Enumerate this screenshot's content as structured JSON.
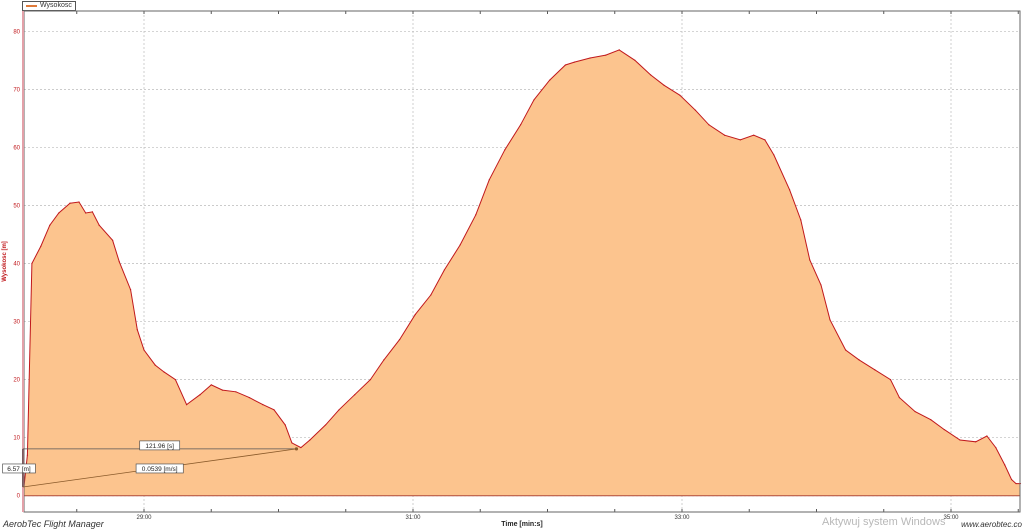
{
  "app": {
    "name": "AerobTec Flight Manager",
    "website": "www.aerobtec.co",
    "watermark": "Aktywuj system Windows"
  },
  "colors": {
    "line": "#c0181c",
    "fill": "#fcc48e",
    "axis_label": "#c0181c",
    "grid": "#bbbbbb"
  },
  "chart_data": {
    "type": "area",
    "title": "",
    "xlabel": "Time [min:s]",
    "ylabel": "Wysokosc [m]",
    "legend": {
      "entries": [
        "Wysokosc"
      ],
      "placement": "top-left"
    },
    "grid": true,
    "xlim": [
      "28:06",
      "35:31"
    ],
    "ylim": [
      -2.8,
      83.5
    ],
    "x_ticks": [
      "29:00",
      "31:00",
      "33:00",
      "35:00"
    ],
    "y_ticks": [
      0,
      10,
      20,
      30,
      40,
      50,
      60,
      70,
      80
    ],
    "series": [
      {
        "name": "Wysokosc",
        "x": [
          "28:06",
          "28:08",
          "28:10",
          "28:14",
          "28:18",
          "28:22",
          "28:27",
          "28:31",
          "28:34",
          "28:37",
          "28:40",
          "28:46",
          "28:49",
          "28:54",
          "28:57",
          "29:00",
          "29:05",
          "29:09",
          "29:14",
          "29:19",
          "29:25",
          "29:30",
          "29:35",
          "29:41",
          "29:47",
          "29:53",
          "29:58",
          "30:03",
          "30:06",
          "30:10",
          "30:14",
          "30:21",
          "30:27",
          "30:34",
          "30:41",
          "30:47",
          "30:54",
          "31:01",
          "31:08",
          "31:14",
          "31:21",
          "31:28",
          "31:34",
          "31:41",
          "31:48",
          "31:54",
          "32:01",
          "32:08",
          "32:12",
          "32:19",
          "32:26",
          "32:32",
          "32:39",
          "32:46",
          "32:52",
          "32:59",
          "33:06",
          "33:12",
          "33:19",
          "33:26",
          "33:32",
          "33:37",
          "33:41",
          "33:48",
          "33:53",
          "33:57",
          "34:02",
          "34:06",
          "34:13",
          "34:19",
          "34:26",
          "34:33",
          "34:37",
          "34:44",
          "34:51",
          "34:57",
          "35:04",
          "35:11",
          "35:16",
          "35:20",
          "35:24",
          "35:27",
          "35:29",
          "35:31"
        ],
        "y": [
          0,
          7,
          40,
          43,
          46.6,
          48.7,
          50.4,
          50.6,
          48.7,
          48.9,
          46.6,
          44,
          40.3,
          35.5,
          28.6,
          25.1,
          22.5,
          21.3,
          20,
          15.7,
          17.4,
          19.1,
          18.2,
          17.9,
          16.9,
          15.7,
          14.8,
          12.2,
          9.1,
          8.3,
          9.6,
          12.2,
          14.8,
          17.4,
          20,
          23.4,
          26.9,
          31.2,
          34.6,
          38.9,
          43.2,
          48.4,
          54.4,
          59.6,
          63.9,
          68.2,
          71.6,
          74.2,
          74.7,
          75.4,
          75.9,
          76.8,
          75,
          72.5,
          70.7,
          69,
          66.4,
          63.9,
          62.1,
          61.3,
          62.1,
          61.3,
          58.7,
          52.7,
          47.5,
          40.6,
          36.3,
          30.3,
          25.1,
          23.4,
          21.7,
          20,
          16.9,
          14.5,
          13.1,
          11.4,
          9.6,
          9.3,
          10.3,
          8.3,
          5.3,
          2.8,
          2.1,
          2.1
        ]
      }
    ],
    "annotations": {
      "measure_start": {
        "x": "28:06",
        "y": 1.5
      },
      "measure_end": {
        "x": "30:08",
        "y": 8.07
      },
      "time_delta_label": "121.96 [s]",
      "height_delta_label": "6.57 [m]",
      "rate_label": "0.0539 [m/s]"
    }
  }
}
